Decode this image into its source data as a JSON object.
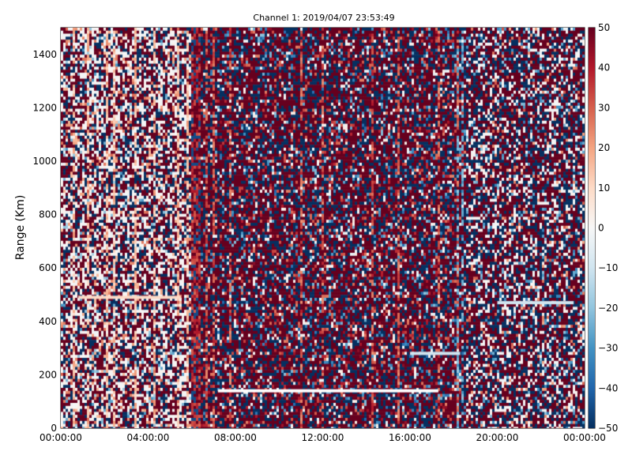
{
  "chart_data": {
    "type": "heatmap",
    "title": "Channel 1: 2019/04/07 23:53:49",
    "ylabel": "Range (Km)",
    "xlabel": "",
    "x_ticks": [
      "00:00:00",
      "04:00:00",
      "08:00:00",
      "12:00:00",
      "16:00:00",
      "20:00:00",
      "00:00:00"
    ],
    "x_range_hours": [
      0,
      24
    ],
    "y_ticks": [
      "0",
      "200",
      "400",
      "600",
      "800",
      "1000",
      "1200",
      "1400"
    ],
    "y_range": [
      0,
      1500
    ],
    "colorbar": {
      "ticks": [
        "50",
        "40",
        "30",
        "20",
        "10",
        "0",
        "−10",
        "−20",
        "−30",
        "−40",
        "−50"
      ],
      "range": [
        -50,
        50
      ],
      "colormap": "RdBu_r"
    },
    "colors": {
      "low": "#053061",
      "mid": "#f7f7f7",
      "high": "#67001f"
    },
    "regimes": [
      {
        "from_hour": 0,
        "to_hour": 6,
        "description": "noisy mixed, white/light heavy"
      },
      {
        "from_hour": 6,
        "to_hour": 18.5,
        "description": "dense noise, red/dark-blue heavy"
      },
      {
        "from_hour": 18.5,
        "to_hour": 24,
        "description": "noisy mixed"
      }
    ],
    "features": [
      {
        "name": "white streak",
        "y": 140,
        "x_from_hour": 7.2,
        "x_to_hour": 17.3
      },
      {
        "name": "light blue streak",
        "y": 280,
        "x_from_hour": 16.0,
        "x_to_hour": 18.3
      },
      {
        "name": "light streak",
        "y": 490,
        "x_from_hour": 0.8,
        "x_to_hour": 5.5
      },
      {
        "name": "light blue streak",
        "y": 470,
        "x_from_hour": 20.0,
        "x_to_hour": 23.5
      }
    ]
  }
}
